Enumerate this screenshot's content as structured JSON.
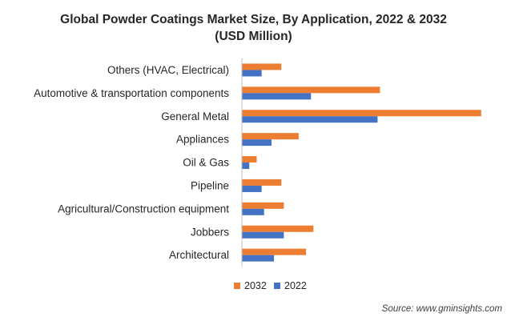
{
  "title_line1": "Global Powder Coatings Market Size, By Application, 2022 & 2032",
  "title_line2": "(USD Million)",
  "source": "Source: www.gminsights.com",
  "colors": {
    "series_2032": "#ED7D31",
    "series_2022": "#4472C4",
    "axis": "#BFBFBF"
  },
  "chart_data": {
    "type": "bar",
    "orientation": "horizontal",
    "title": "Global Powder Coatings Market Size, By Application, 2022 & 2032 (USD Million)",
    "xlabel": "",
    "ylabel": "",
    "grid": false,
    "legend_position": "bottom",
    "categories": [
      "Others (HVAC, Electrical)",
      "Automotive & transportation components",
      "General Metal",
      "Appliances",
      "Oil & Gas",
      "Pipeline",
      "Agricultural/Construction equipment",
      "Jobbers",
      "Architectural"
    ],
    "series": [
      {
        "name": "2032",
        "values": [
          16,
          56,
          97,
          23,
          6,
          16,
          17,
          29,
          26
        ]
      },
      {
        "name": "2022",
        "values": [
          8,
          28,
          55,
          12,
          3,
          8,
          9,
          17,
          13
        ]
      }
    ],
    "xlim": [
      0,
      100
    ]
  }
}
